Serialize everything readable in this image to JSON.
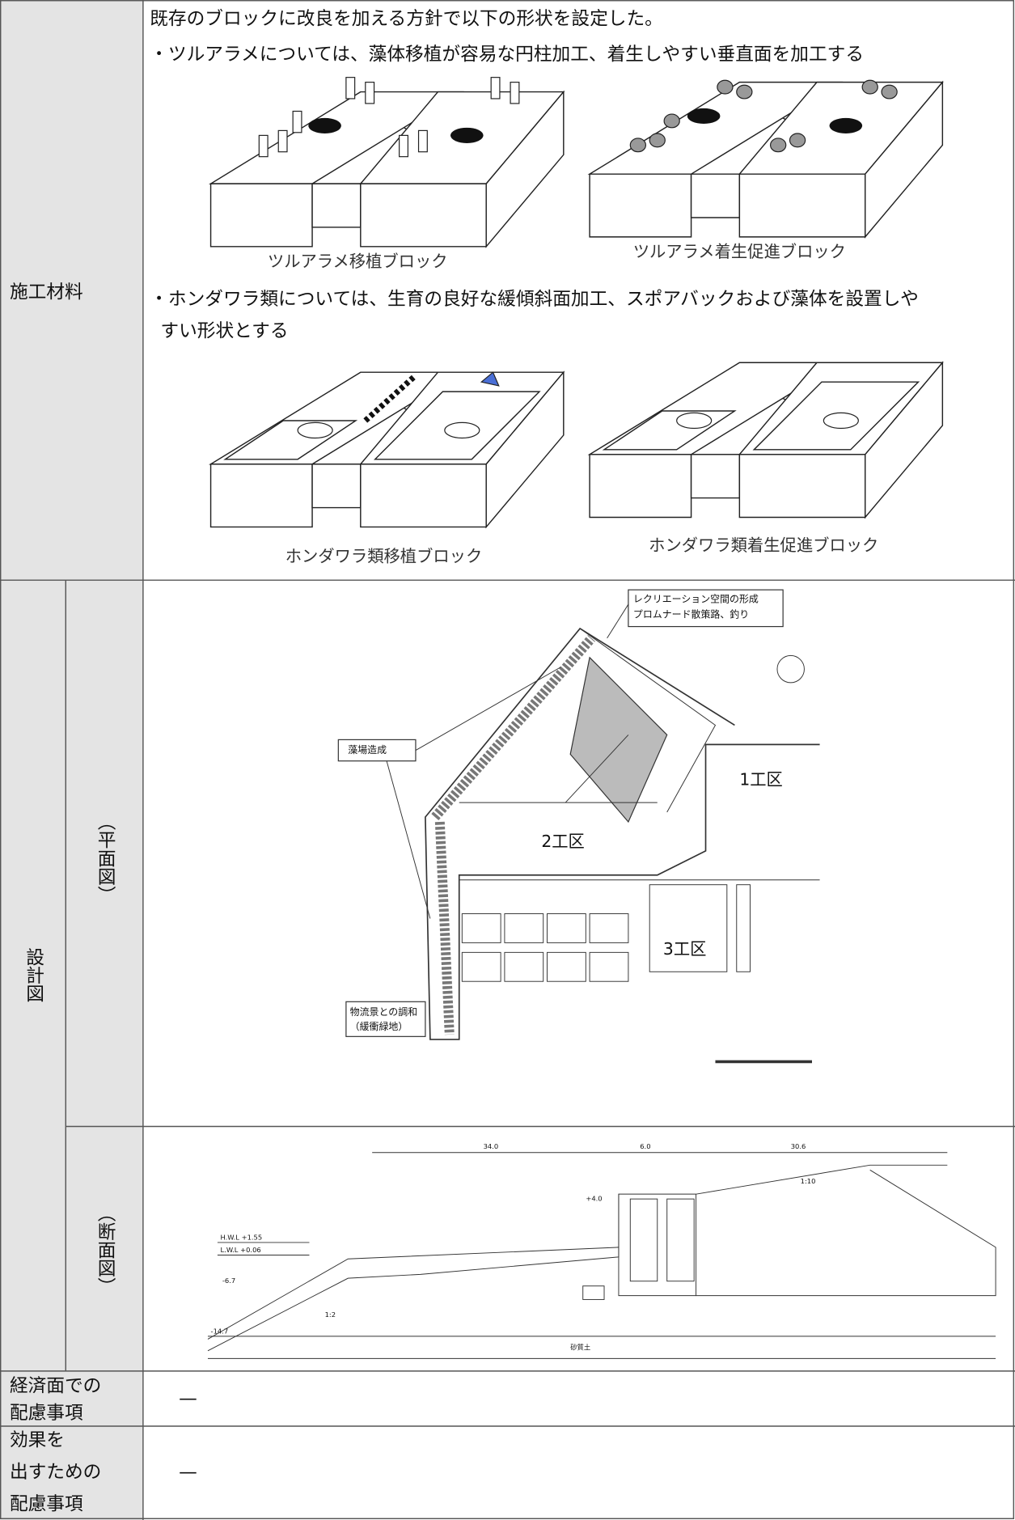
{
  "construction_material": {
    "label": "施工材料",
    "lines": [
      "既存のブロックに改良を加える方針で以下の形状を設定した。",
      "・ツルアラメについては、藻体移植が容易な円柱加工、着生しやすい垂直面を加工する",
      "・ホンダワラ類については、生育の良好な緩傾斜面加工、スポアバックおよび藻体を設置しや",
      "すい形状とする"
    ],
    "captions": [
      "ツルアラメ移植ブロック",
      "ツルアラメ着生促進ブロック",
      "ホンダワラ類移植ブロック",
      "ホンダワラ類着生促進ブロック"
    ]
  },
  "design_drawing": {
    "label": "設計図",
    "plan": {
      "label": "（平面図）",
      "annotations": [
        "レクリエーション空間の形成",
        "プロムナード散策路、釣り",
        "藻場造成",
        "1工区",
        "2工区",
        "3工区",
        "物流景との調和",
        "（緩衝緑地）"
      ]
    },
    "section": {
      "label": "（断面図）",
      "annotations": [
        "34.0",
        "6.0",
        "30.6",
        "1:10",
        "+4.0",
        "H.W.L +1.55",
        "L.W.L +0.06",
        "-6.7",
        "-14.7",
        "1:2",
        "砂質土"
      ]
    }
  },
  "economic": {
    "label": [
      "経済面での",
      "配慮事項"
    ],
    "value": "—"
  },
  "effect": {
    "label": [
      "効果を",
      "出すための",
      "配慮事項"
    ],
    "value": "—"
  }
}
